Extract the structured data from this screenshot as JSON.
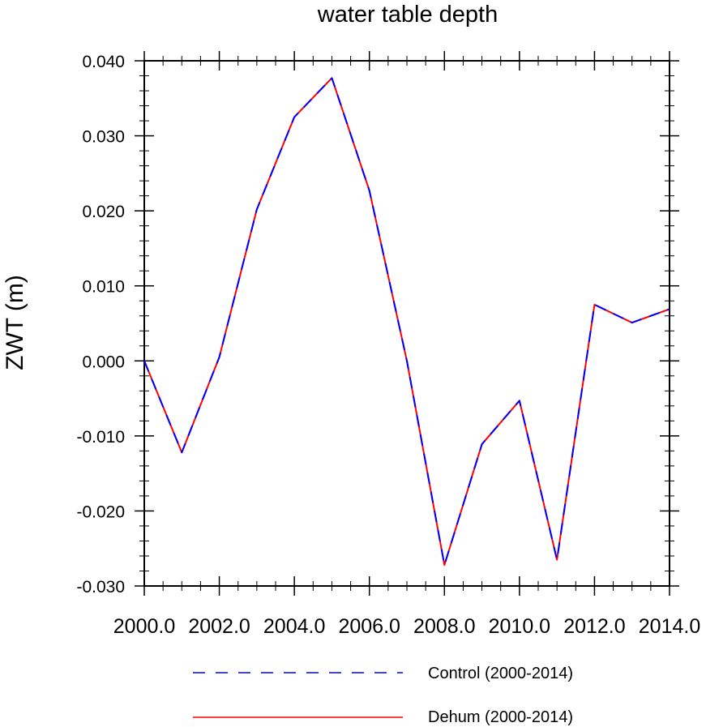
{
  "chart_data": {
    "type": "line",
    "title": "water table depth",
    "xlabel": "",
    "ylabel": "ZWT  (m)",
    "xlim": [
      2000,
      2014
    ],
    "ylim": [
      -0.03,
      0.04
    ],
    "xticks": [
      "2000.0",
      "2002.0",
      "2004.0",
      "2006.0",
      "2008.0",
      "2010.0",
      "2012.0",
      "2014.0"
    ],
    "yticks": [
      "-0.030",
      "-0.020",
      "-0.010",
      "0.000",
      "0.010",
      "0.020",
      "0.030",
      "0.040"
    ],
    "x": [
      2000,
      2001,
      2002,
      2003,
      2004,
      2005,
      2006,
      2007,
      2008,
      2009,
      2010,
      2011,
      2012,
      2013,
      2014
    ],
    "series": [
      {
        "name": "Control (2000-2014)",
        "color": "#0000ff",
        "dash": "dashed",
        "values": [
          0.0,
          -0.0122,
          0.0005,
          0.0202,
          0.0325,
          0.0377,
          0.0227,
          0.0,
          -0.0272,
          -0.0111,
          -0.0053,
          -0.0265,
          0.0075,
          0.0051,
          0.0069
        ]
      },
      {
        "name": "Dehum (2000-2014)",
        "color": "#ff0000",
        "dash": "solid",
        "values": [
          0.0,
          -0.0122,
          0.0005,
          0.0202,
          0.0325,
          0.0377,
          0.0227,
          0.0,
          -0.0272,
          -0.0111,
          -0.0053,
          -0.0265,
          0.0075,
          0.0051,
          0.0069
        ]
      }
    ],
    "grid": false,
    "legend_position": "bottom"
  }
}
